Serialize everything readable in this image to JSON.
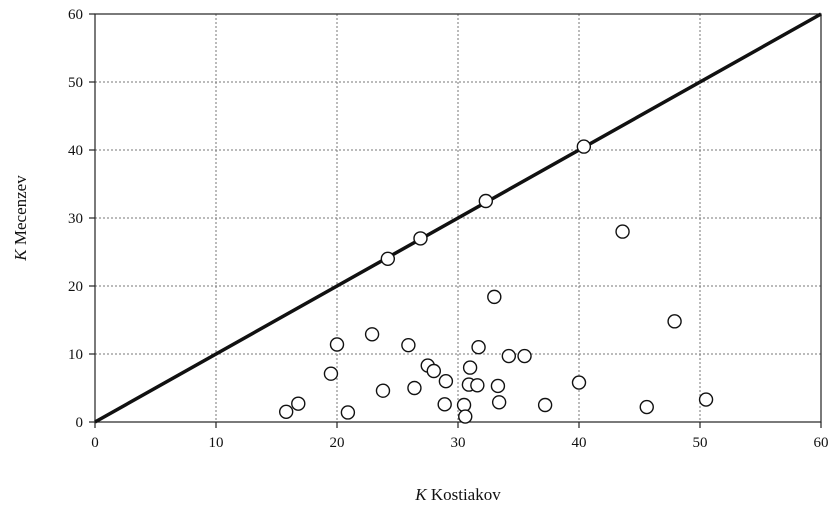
{
  "chart_data": {
    "type": "scatter",
    "xlabel_var": "K",
    "xlabel_rest": " Kostiakov",
    "ylabel_var": "K",
    "ylabel_rest": " Mecenzev",
    "xlim": [
      0,
      60
    ],
    "ylim": [
      0,
      60
    ],
    "xticks": [
      0,
      10,
      20,
      30,
      40,
      50,
      60
    ],
    "yticks": [
      0,
      10,
      20,
      30,
      40,
      50,
      60
    ],
    "grid": true,
    "reference_line": {
      "type": "identity",
      "from": [
        0,
        0
      ],
      "to": [
        60,
        60
      ]
    },
    "series": [
      {
        "marker": "open-circle",
        "x": [
          15.8,
          16.8,
          19.5,
          20.0,
          20.9,
          22.9,
          23.8,
          24.2,
          25.9,
          26.4,
          26.9,
          27.5,
          28.0,
          28.9,
          29.0,
          30.5,
          30.6,
          30.9,
          31.0,
          31.6,
          31.7,
          32.3,
          33.0,
          33.3,
          33.4,
          34.2,
          35.5,
          37.2,
          40.0,
          40.4,
          43.6,
          45.6,
          47.9,
          50.5
        ],
        "y": [
          1.5,
          2.7,
          7.1,
          11.4,
          1.4,
          12.9,
          4.6,
          24.0,
          11.3,
          5.0,
          27.0,
          8.3,
          7.5,
          2.6,
          6.0,
          2.5,
          0.8,
          5.5,
          8.0,
          5.4,
          11.0,
          32.5,
          18.4,
          5.3,
          2.9,
          9.7,
          9.7,
          2.5,
          5.8,
          40.5,
          28.0,
          2.2,
          14.8,
          3.3
        ]
      }
    ]
  }
}
